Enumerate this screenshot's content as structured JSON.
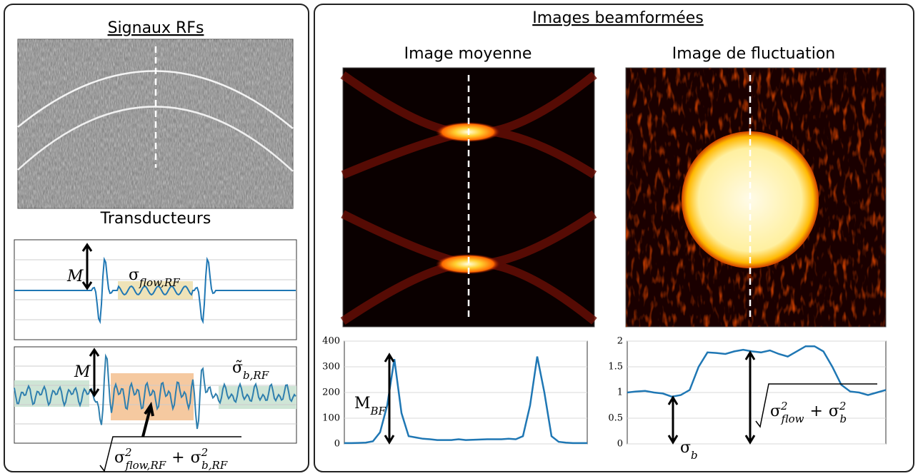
{
  "left": {
    "title": "Signaux RFs",
    "image_caption": "Transducteurs",
    "label_m_top": "M",
    "label_sigma_flow_rf": {
      "base": "σ",
      "sub": "flow,RF"
    },
    "label_m_bottom": "M",
    "label_sigma_b_rf": {
      "base": "σ̃",
      "sub": "b,RF"
    },
    "label_sqrt": {
      "terms": [
        {
          "base": "σ",
          "sup": "2",
          "sub": "flow,RF"
        },
        {
          "base": "σ",
          "sup": "2",
          "sub": "b,RF"
        }
      ],
      "op": "+"
    }
  },
  "right": {
    "title": "Images beamformées",
    "left_image_title": "Image moyenne",
    "right_image_title": "Image de fluctuation",
    "label_mbf": {
      "base": "M",
      "sub": "BF"
    },
    "label_sigma_b": {
      "base": "σ",
      "sub": "b"
    },
    "label_sqrt": {
      "terms": [
        {
          "base": "σ",
          "sup": "2",
          "sub": "flow"
        },
        {
          "base": "σ",
          "sup": "2",
          "sub": "b"
        }
      ],
      "op": "+"
    }
  },
  "chart_data": [
    {
      "type": "line",
      "color": "#1f77b4",
      "ylim": [
        0,
        400
      ],
      "yticks": [
        0,
        100,
        200,
        300,
        400
      ],
      "grid": true,
      "values": [
        3,
        3,
        4,
        5,
        10,
        45,
        150,
        330,
        120,
        30,
        25,
        20,
        18,
        15,
        15,
        15,
        18,
        15,
        16,
        17,
        18,
        18,
        18,
        20,
        18,
        30,
        150,
        340,
        200,
        30,
        8,
        5,
        3,
        3,
        3
      ]
    },
    {
      "type": "line",
      "color": "#1f77b4",
      "ylim": [
        0,
        2
      ],
      "yticks": [
        0,
        0.5,
        1,
        1.5,
        2
      ],
      "grid": true,
      "values": [
        1.0,
        1.02,
        1.03,
        1.0,
        0.98,
        0.92,
        0.95,
        1.05,
        1.5,
        1.78,
        1.77,
        1.75,
        1.8,
        1.83,
        1.8,
        1.78,
        1.82,
        1.75,
        1.7,
        1.8,
        1.9,
        1.9,
        1.8,
        1.5,
        1.15,
        1.02,
        1.0,
        0.95,
        1.0,
        1.05
      ]
    }
  ]
}
